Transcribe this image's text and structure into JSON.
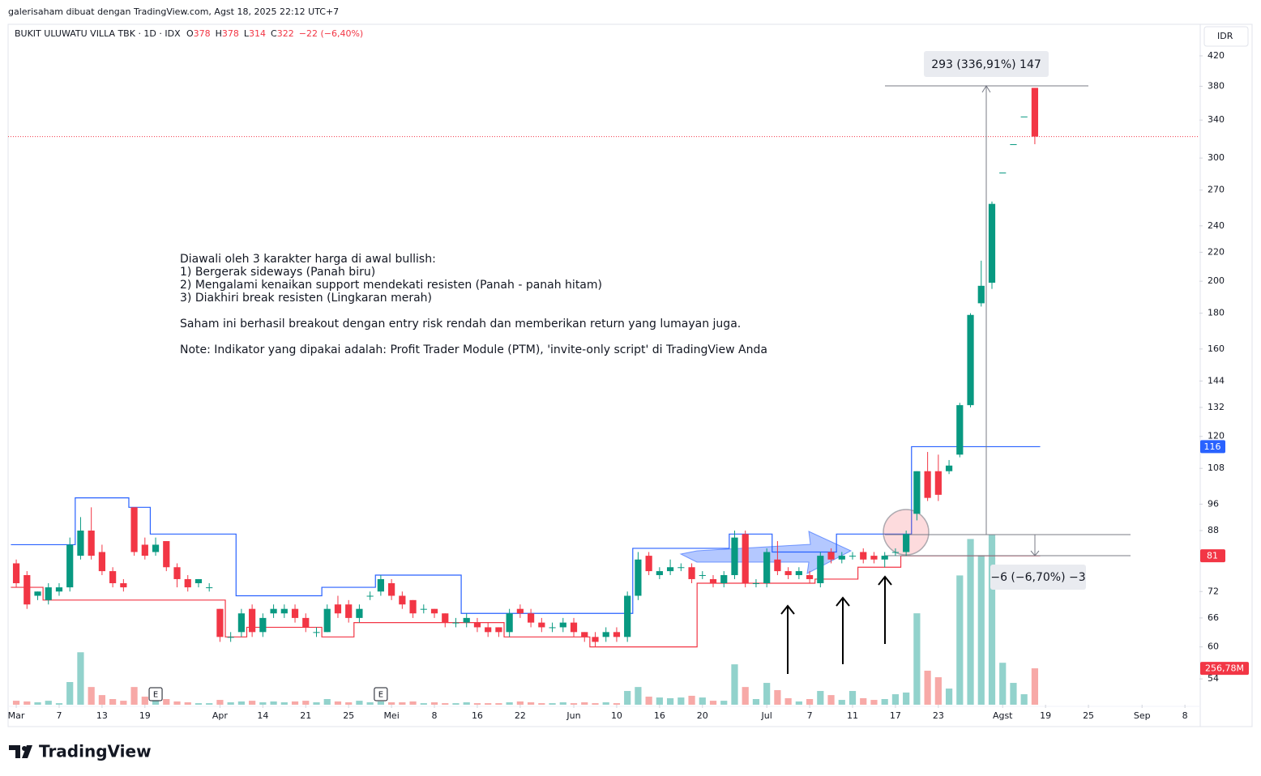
{
  "header": {
    "attribution": "galerisaham dibuat dengan TradingView.com, Agst 18, 2025 22:12 UTC+7",
    "logo": "TradingView"
  },
  "chart_data": {
    "type": "candlestick",
    "symbol": "BUKIT ULUWATU VILLA TBK · 1D · IDX",
    "ohlc_keys": [
      "O",
      "H",
      "L",
      "C"
    ],
    "change": "−22 (−6,40%)",
    "currency": "IDR",
    "up_color": "#089981",
    "down_color": "#f23645",
    "volume_up_color": "rgba(38,166,154,0.5)",
    "volume_down_color": "rgba(239,83,80,0.5)",
    "log_scale": true,
    "grid": false,
    "xlim": [
      -0.76,
      110.35
    ],
    "xticks": [
      {
        "value": 0,
        "label": "Mar"
      },
      {
        "value": 4,
        "label": "7"
      },
      {
        "value": 8,
        "label": "13"
      },
      {
        "value": 12,
        "label": "19"
      },
      {
        "value": 19,
        "label": "Apr"
      },
      {
        "value": 23,
        "label": "14"
      },
      {
        "value": 27,
        "label": "21"
      },
      {
        "value": 31,
        "label": "25"
      },
      {
        "value": 35,
        "label": "Mei"
      },
      {
        "value": 39,
        "label": "8"
      },
      {
        "value": 43,
        "label": "16"
      },
      {
        "value": 47,
        "label": "22"
      },
      {
        "value": 52,
        "label": "Jun"
      },
      {
        "value": 56,
        "label": "10"
      },
      {
        "value": 60,
        "label": "16"
      },
      {
        "value": 64,
        "label": "20"
      },
      {
        "value": 70,
        "label": "Jul"
      },
      {
        "value": 74,
        "label": "7"
      },
      {
        "value": 78,
        "label": "11"
      },
      {
        "value": 82,
        "label": "17"
      },
      {
        "value": 86,
        "label": "23"
      },
      {
        "value": 92,
        "label": "Agst"
      },
      {
        "value": 96,
        "label": "19"
      },
      {
        "value": 100,
        "label": "25"
      },
      {
        "value": 105,
        "label": "Sep"
      },
      {
        "value": 109,
        "label": "8"
      }
    ],
    "ylim": [
      49.6,
      466
    ],
    "yticks": [
      54,
      60,
      66,
      72,
      88,
      96,
      108,
      120,
      132,
      144,
      160,
      180,
      200,
      220,
      240,
      270,
      300,
      340,
      380,
      420
    ],
    "volume_ylim": [
      0,
      4800
    ],
    "open": [
      79,
      76,
      71,
      70,
      72,
      73,
      81,
      88,
      82,
      77,
      74,
      95,
      84,
      82,
      85,
      78,
      75,
      74,
      73,
      68,
      62,
      63,
      68,
      63,
      67,
      67,
      68,
      66,
      63,
      63,
      69,
      69,
      66,
      71,
      72,
      74,
      71,
      70,
      68,
      68,
      67,
      65,
      65,
      65,
      64,
      64,
      63,
      68,
      67,
      65,
      64,
      64,
      65,
      63,
      62,
      62,
      63,
      62,
      71,
      81,
      76,
      77,
      78,
      78,
      76,
      75,
      74,
      76,
      87,
      74,
      74,
      80,
      77,
      76,
      76,
      74,
      82,
      80,
      81,
      82,
      81,
      80,
      82,
      82,
      93,
      107,
      107,
      107,
      113,
      133,
      186,
      199,
      286,
      314,
      344,
      378
    ],
    "high": [
      80,
      77,
      72,
      74,
      74,
      86,
      92,
      95,
      84,
      78,
      75,
      95,
      86,
      86,
      85,
      79,
      76,
      75,
      74,
      68,
      63,
      68,
      69,
      67,
      69,
      69,
      69,
      67,
      64,
      69,
      71,
      70,
      69,
      72,
      76,
      75,
      72,
      70,
      69,
      68,
      67,
      66,
      67,
      66,
      65,
      64,
      68,
      69,
      68,
      66,
      65,
      66,
      66,
      63,
      63,
      64,
      64,
      72,
      82,
      82,
      78,
      80,
      79,
      79,
      77,
      76,
      77,
      88,
      88,
      75,
      83,
      85,
      78,
      78,
      77,
      82,
      83,
      82,
      82,
      83,
      82,
      82,
      83,
      88,
      107,
      114,
      113,
      111,
      134,
      180,
      214,
      260,
      286,
      314,
      344,
      378
    ],
    "low": [
      73,
      68,
      70,
      69,
      71,
      72,
      80,
      80,
      76,
      73,
      72,
      81,
      80,
      81,
      77,
      73,
      72,
      73,
      72,
      61,
      61,
      62,
      62,
      62,
      66,
      66,
      65,
      63,
      62,
      63,
      66,
      65,
      65,
      70,
      71,
      70,
      68,
      66,
      67,
      66,
      64,
      64,
      64,
      63,
      62,
      62,
      62,
      66,
      64,
      63,
      63,
      63,
      62,
      61,
      60,
      61,
      61,
      61,
      70,
      76,
      75,
      76,
      77,
      74,
      75,
      73,
      73,
      75,
      73,
      73,
      73,
      76,
      75,
      75,
      74,
      73,
      79,
      79,
      80,
      79,
      79,
      78,
      81,
      81,
      91,
      97,
      97,
      106,
      112,
      132,
      184,
      195,
      286,
      314,
      344,
      314
    ],
    "close": [
      74,
      69,
      72,
      73,
      73,
      84,
      88,
      81,
      77,
      74,
      73,
      82,
      81,
      84,
      78,
      75,
      73,
      75,
      73,
      62,
      62,
      67,
      63,
      66,
      68,
      68,
      66,
      64,
      63,
      68,
      67,
      66,
      68,
      71,
      75,
      71,
      69,
      67,
      68,
      67,
      65,
      65,
      66,
      64,
      63,
      63,
      67,
      67,
      65,
      64,
      64,
      65,
      63,
      62,
      61,
      63,
      62,
      71,
      80,
      77,
      77,
      78,
      78,
      75,
      76,
      74,
      76,
      86,
      74,
      74,
      82,
      77,
      76,
      77,
      75,
      81,
      80,
      81,
      81,
      80,
      80,
      81,
      82,
      87,
      107,
      98,
      99,
      109,
      133,
      179,
      197,
      258,
      286,
      314,
      344,
      322
    ],
    "volume": [
      28,
      23,
      17,
      28,
      11,
      160,
      370,
      125,
      68,
      40,
      28,
      125,
      57,
      34,
      40,
      23,
      17,
      11,
      11,
      34,
      17,
      23,
      28,
      17,
      23,
      17,
      23,
      28,
      17,
      40,
      23,
      17,
      28,
      17,
      23,
      17,
      17,
      23,
      11,
      17,
      11,
      11,
      17,
      11,
      11,
      11,
      17,
      23,
      17,
      11,
      11,
      17,
      11,
      17,
      11,
      17,
      11,
      97,
      125,
      57,
      51,
      46,
      51,
      63,
      51,
      28,
      28,
      285,
      125,
      40,
      154,
      103,
      46,
      23,
      40,
      97,
      68,
      34,
      97,
      46,
      34,
      40,
      74,
      86,
      645,
      240,
      194,
      114,
      912,
      1169,
      1055,
      1197,
      296,
      154,
      74,
      256.78
    ],
    "last_volume_label": "256,78M",
    "resistance": {
      "color": "#2962ff",
      "values": [
        84,
        84,
        84,
        84,
        84,
        84,
        98,
        98,
        98,
        98,
        98,
        95,
        95,
        87,
        87,
        87,
        87,
        87,
        87,
        87,
        87,
        71,
        71,
        71,
        71,
        71,
        71,
        71,
        71,
        73,
        73,
        73,
        73,
        73,
        76,
        76,
        76,
        76,
        76,
        76,
        76,
        76,
        67,
        67,
        67,
        67,
        67,
        67,
        67,
        67,
        67,
        67,
        67,
        67,
        67,
        67,
        67,
        67,
        83,
        83,
        83,
        83,
        83,
        83,
        83,
        83,
        83,
        87,
        87,
        87,
        87,
        82,
        82,
        82,
        82,
        82,
        82,
        87,
        87,
        87,
        87,
        87,
        87,
        87,
        116,
        116,
        116,
        116,
        116,
        116,
        116,
        116,
        116,
        116,
        116,
        116
      ]
    },
    "support": {
      "color": "#f23645",
      "values": [
        73,
        73,
        73,
        70,
        70,
        70,
        70,
        70,
        70,
        70,
        70,
        70,
        70,
        70,
        70,
        70,
        70,
        70,
        70,
        70,
        62,
        62,
        64,
        64,
        64,
        64,
        64,
        64,
        64,
        62,
        62,
        62,
        65,
        65,
        65,
        65,
        65,
        65,
        65,
        65,
        65,
        65,
        65,
        65,
        65,
        65,
        62,
        62,
        62,
        62,
        62,
        62,
        62,
        62,
        60,
        60,
        60,
        60,
        60,
        60,
        60,
        60,
        60,
        60,
        74,
        74,
        74,
        74,
        74,
        74,
        74,
        74,
        74,
        74,
        74,
        75,
        75,
        75,
        75,
        78,
        78,
        78,
        78,
        81,
        81,
        81,
        81,
        81,
        81,
        81,
        81,
        81,
        81,
        81,
        81,
        81
      ]
    },
    "price_badges": [
      {
        "value": 116,
        "color": "#2962ff"
      },
      {
        "value": 81,
        "color": "#f23645"
      }
    ],
    "earnings": [
      {
        "x": 13,
        "label": "E"
      },
      {
        "x": 34,
        "label": "E"
      }
    ]
  },
  "annotations": {
    "note": [
      "Diawali oleh 3 karakter harga di awal bullish:",
      "1) Bergerak sideways (Panah biru)",
      "2) Mengalami kenaikan support mendekati resisten (Panah - panah hitam)",
      "3) Diakhiri break resisten (Lingkaran merah)",
      "Saham ini berhasil breakout dengan entry risk rendah dan memberikan return yang lumayan juga.",
      "Note: Indikator yang dipakai adalah: Profit Trader Module (PTM), 'invite-only script' di TradingView Anda"
    ],
    "measure_up": "293 (336,91%) 147",
    "measure_down": "−6 (−6,70%) −3"
  }
}
